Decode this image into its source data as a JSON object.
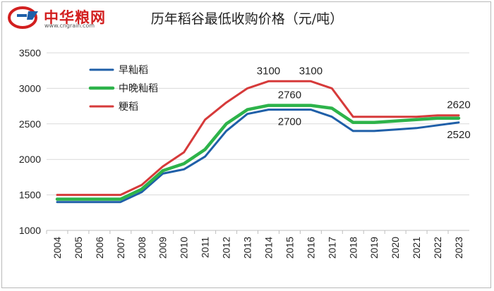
{
  "logo": {
    "text": "中华粮网",
    "url": "www.cngrain.com",
    "colors": {
      "red": "#d21f1f",
      "blue": "#1f5fa8"
    }
  },
  "chart_data": {
    "type": "line",
    "title": "历年稻谷最低收购价格（元/吨）",
    "categories": [
      "2004",
      "2005",
      "2006",
      "2007",
      "2008",
      "2009",
      "2010",
      "2011",
      "2012",
      "2013",
      "2014",
      "2015",
      "2016",
      "2017",
      "2018",
      "2019",
      "2020",
      "2021",
      "2022",
      "2023"
    ],
    "series": [
      {
        "name": "早籼稻",
        "color": "#1f5fa8",
        "values": [
          1400,
          1400,
          1400,
          1400,
          1540,
          1800,
          1860,
          2040,
          2400,
          2640,
          2700,
          2700,
          2700,
          2600,
          2400,
          2400,
          2420,
          2440,
          2480,
          2520
        ]
      },
      {
        "name": "中晚籼稻",
        "color": "#2db34a",
        "values": [
          1440,
          1440,
          1440,
          1440,
          1580,
          1840,
          1940,
          2140,
          2500,
          2700,
          2760,
          2760,
          2760,
          2720,
          2520,
          2520,
          2540,
          2560,
          2580,
          2580
        ]
      },
      {
        "name": "粳稻",
        "color": "#d63a3a",
        "values": [
          1500,
          1500,
          1500,
          1500,
          1640,
          1900,
          2100,
          2560,
          2800,
          3000,
          3100,
          3100,
          3100,
          3000,
          2600,
          2600,
          2600,
          2600,
          2620,
          2620
        ]
      }
    ],
    "data_labels": [
      {
        "text": "3100",
        "series": 2,
        "index": 10,
        "pos": "above"
      },
      {
        "text": "3100",
        "series": 2,
        "index": 12,
        "pos": "above"
      },
      {
        "text": "2760",
        "series": 1,
        "index": 11,
        "pos": "above"
      },
      {
        "text": "2700",
        "series": 0,
        "index": 11,
        "pos": "below"
      },
      {
        "text": "2620",
        "series": 2,
        "index": 19,
        "pos": "above"
      },
      {
        "text": "2520",
        "series": 0,
        "index": 19,
        "pos": "below"
      }
    ],
    "yticks": [
      "1000",
      "1500",
      "2000",
      "2500",
      "3000",
      "3500"
    ],
    "ylim": [
      1000,
      3500
    ],
    "legend_placement": "top-left",
    "grid": "horizontal"
  }
}
